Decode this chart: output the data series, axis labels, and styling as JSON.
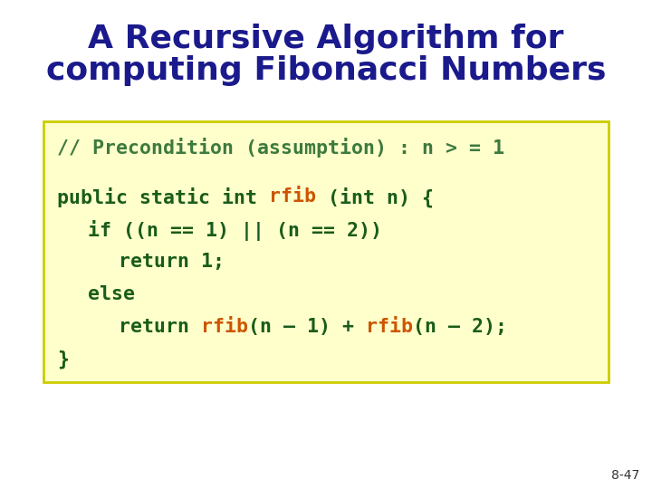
{
  "title_line1": "A Recursive Algorithm for",
  "title_line2": "computing Fibonacci Numbers",
  "title_color": "#1a1a8c",
  "title_fontsize": 26,
  "background_color": "#ffffff",
  "box_bg_color": "#ffffcc",
  "box_border_color": "#cccc00",
  "precondition_text": "// Precondition (assumption) : n > = 1",
  "precondition_color": "#3d7a3d",
  "code_color_dark": "#1a5c1a",
  "code_color_red": "#cc5500",
  "slide_number": "8-47",
  "code_fontsize": 15.5,
  "code_font": "DejaVu Sans Mono"
}
